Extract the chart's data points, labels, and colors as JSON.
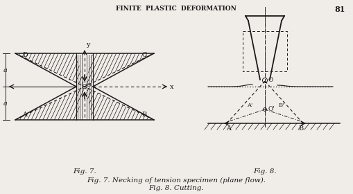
{
  "bg_color": "#f0ede8",
  "line_color": "#1a1a1a",
  "title_top": "FINITE  PLASTIC  DEFORMATION",
  "page_num": "81",
  "fig7_caption": "Fig. 7.",
  "fig8_caption": "Fig. 8.",
  "bottom_caption": "Fig. 7. Necking of tension specimen (plane flow).",
  "bottom_caption2": "Fig. 8. Cutting."
}
